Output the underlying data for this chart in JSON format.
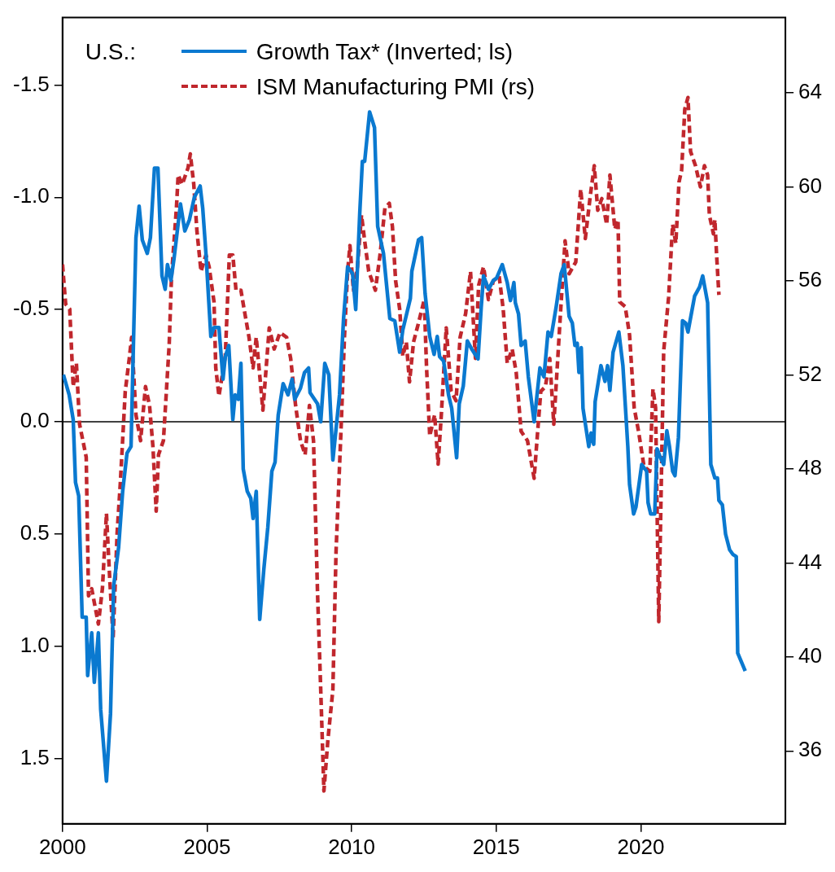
{
  "chart_data": {
    "type": "line",
    "legend_title": "U.S.:",
    "legend": "top left",
    "grid": false,
    "marker": "none",
    "xlim": [
      2000,
      2025
    ],
    "xticks": [
      2000,
      2005,
      2010,
      2015,
      2020
    ],
    "ylim": [
      1.79,
      -1.8
    ],
    "yticks": [
      {
        "value": -1.5,
        "label": "-1.5"
      },
      {
        "value": -1,
        "label": "-1.0"
      },
      {
        "value": -0.5,
        "label": "-0.5"
      },
      {
        "value": 0,
        "label": "0.0"
      },
      {
        "value": 0.5,
        "label": "0.5"
      },
      {
        "value": 1,
        "label": "1.0"
      },
      {
        "value": 1.5,
        "label": "1.5"
      }
    ],
    "y2lim": [
      32.9,
      67.2
    ],
    "y2ticks": [
      36,
      40,
      44,
      48,
      52,
      56,
      60,
      64
    ],
    "ref_lines": [
      {
        "axis": "y",
        "value": 0,
        "color": "#000000"
      }
    ],
    "series": [
      {
        "name": "Growth Tax* (Inverted; ls)",
        "color": "#0a79d0",
        "line_style": "solid",
        "axis": "y",
        "x": [
          2000.03,
          2000.23,
          2000.37,
          2000.45,
          2000.56,
          2000.68,
          2000.82,
          2000.87,
          2001.01,
          2001.1,
          2001.24,
          2001.32,
          2001.52,
          2001.66,
          2001.77,
          2001.94,
          2002.08,
          2002.23,
          2002.37,
          2002.45,
          2002.54,
          2002.65,
          2002.76,
          2002.93,
          2003.04,
          2003.18,
          2003.3,
          2003.44,
          2003.55,
          2003.63,
          2003.75,
          2003.86,
          2004.08,
          2004.23,
          2004.39,
          2004.56,
          2004.76,
          2004.85,
          2004.96,
          2005.13,
          2005.24,
          2005.41,
          2005.55,
          2005.63,
          2005.75,
          2005.89,
          2005.97,
          2006.08,
          2006.17,
          2006.25,
          2006.39,
          2006.51,
          2006.59,
          2006.7,
          2006.82,
          2006.96,
          2007.1,
          2007.24,
          2007.35,
          2007.46,
          2007.63,
          2007.8,
          2007.94,
          2008.03,
          2008.23,
          2008.37,
          2008.51,
          2008.56,
          2008.82,
          2008.93,
          2009.07,
          2009.21,
          2009.35,
          2009.58,
          2009.72,
          2009.86,
          2010.03,
          2010.14,
          2010.28,
          2010.37,
          2010.45,
          2010.62,
          2010.79,
          2010.9,
          2011.1,
          2011.32,
          2011.49,
          2011.66,
          2011.77,
          2012.03,
          2012.08,
          2012.31,
          2012.42,
          2012.54,
          2012.7,
          2012.85,
          2012.96,
          2013.04,
          2013.18,
          2013.35,
          2013.46,
          2013.63,
          2013.72,
          2013.86,
          2014,
          2014.17,
          2014.37,
          2014.48,
          2014.56,
          2014.73,
          2014.9,
          2015.01,
          2015.21,
          2015.38,
          2015.49,
          2015.61,
          2015.66,
          2015.77,
          2015.86,
          2016,
          2016.11,
          2016.31,
          2016.51,
          2016.65,
          2016.79,
          2016.9,
          2017.07,
          2017.24,
          2017.35,
          2017.52,
          2017.63,
          2017.72,
          2017.8,
          2017.86,
          2017.94,
          2018,
          2018.2,
          2018.28,
          2018.37,
          2018.42,
          2018.62,
          2018.76,
          2018.85,
          2018.93,
          2019.04,
          2019.24,
          2019.38,
          2019.55,
          2019.61,
          2019.75,
          2019.83,
          2020.03,
          2020.2,
          2020.25,
          2020.34,
          2020.48,
          2020.56,
          2020.68,
          2020.79,
          2020.9,
          2020.99,
          2021.1,
          2021.18,
          2021.3,
          2021.44,
          2021.55,
          2021.63,
          2021.86,
          2022.03,
          2022.14,
          2022.31,
          2022.42,
          2022.56,
          2022.65,
          2022.7,
          2022.82,
          2022.93,
          2023.07,
          2023.18,
          2023.3,
          2023.35,
          2023.61
        ],
        "values": [
          -0.21,
          -0.12,
          -0.01,
          0.27,
          0.33,
          0.87,
          0.87,
          1.13,
          0.94,
          1.16,
          0.94,
          1.28,
          1.6,
          1.3,
          0.73,
          0.56,
          0.31,
          0.14,
          0.11,
          -0.33,
          -0.82,
          -0.96,
          -0.81,
          -0.75,
          -0.82,
          -1.13,
          -1.13,
          -0.65,
          -0.59,
          -0.7,
          -0.63,
          -0.73,
          -0.97,
          -0.85,
          -0.9,
          -1,
          -1.05,
          -0.95,
          -0.75,
          -0.38,
          -0.42,
          -0.42,
          -0.19,
          -0.29,
          -0.34,
          -0.01,
          -0.12,
          -0.1,
          -0.26,
          0.21,
          0.31,
          0.34,
          0.43,
          0.31,
          0.88,
          0.66,
          0.47,
          0.22,
          0.18,
          -0.03,
          -0.17,
          -0.12,
          -0.19,
          -0.1,
          -0.15,
          -0.22,
          -0.24,
          -0.13,
          -0.08,
          0,
          -0.26,
          -0.21,
          0.17,
          -0.12,
          -0.46,
          -0.69,
          -0.66,
          -0.5,
          -0.93,
          -1.16,
          -1.16,
          -1.38,
          -1.31,
          -0.87,
          -0.75,
          -0.46,
          -0.45,
          -0.31,
          -0.41,
          -0.55,
          -0.67,
          -0.81,
          -0.82,
          -0.57,
          -0.38,
          -0.3,
          -0.38,
          -0.29,
          -0.27,
          -0.12,
          -0.06,
          0.16,
          -0.08,
          -0.16,
          -0.36,
          -0.32,
          -0.28,
          -0.51,
          -0.65,
          -0.59,
          -0.63,
          -0.64,
          -0.7,
          -0.62,
          -0.54,
          -0.62,
          -0.53,
          -0.48,
          -0.34,
          -0.36,
          -0.2,
          0,
          -0.24,
          -0.2,
          -0.4,
          -0.38,
          -0.51,
          -0.66,
          -0.7,
          -0.47,
          -0.44,
          -0.34,
          -0.35,
          -0.22,
          -0.33,
          -0.06,
          0.11,
          0.05,
          0.1,
          -0.09,
          -0.25,
          -0.18,
          -0.25,
          -0.14,
          -0.31,
          -0.4,
          -0.25,
          0.11,
          0.28,
          0.41,
          0.38,
          0.19,
          0.22,
          0.36,
          0.41,
          0.41,
          0.12,
          0.16,
          0.19,
          0.04,
          0.11,
          0.22,
          0.24,
          0.07,
          -0.45,
          -0.44,
          -0.4,
          -0.56,
          -0.6,
          -0.65,
          -0.53,
          0.19,
          0.25,
          0.25,
          0.35,
          0.37,
          0.5,
          0.57,
          0.59,
          0.6,
          1.03,
          1.11
        ]
      },
      {
        "name": "ISM Manufacturing PMI (rs)",
        "color": "#c0272d",
        "line_style": "dashed",
        "axis": "y2",
        "x": [
          2000,
          2000.11,
          2000.25,
          2000.37,
          2000.48,
          2000.59,
          2000.82,
          2000.9,
          2001.01,
          2001.24,
          2001.38,
          2001.52,
          2001.63,
          2001.75,
          2001.89,
          2002,
          2002.17,
          2002.31,
          2002.39,
          2002.54,
          2002.7,
          2002.87,
          2003.01,
          2003.13,
          2003.24,
          2003.32,
          2003.49,
          2003.69,
          2003.77,
          2003.94,
          2004,
          2004.14,
          2004.34,
          2004.42,
          2004.54,
          2004.65,
          2004.79,
          2004.96,
          2005.07,
          2005.24,
          2005.3,
          2005.41,
          2005.63,
          2005.77,
          2005.89,
          2006,
          2006.17,
          2006.28,
          2006.45,
          2006.59,
          2006.7,
          2006.93,
          2007.15,
          2007.32,
          2007.52,
          2007.75,
          2007.89,
          2008.06,
          2008.23,
          2008.39,
          2008.54,
          2008.68,
          2008.82,
          2008.93,
          2009.04,
          2009.18,
          2009.35,
          2009.46,
          2009.63,
          2009.75,
          2009.86,
          2009.94,
          2010.06,
          2010.2,
          2010.34,
          2010.45,
          2010.59,
          2010.82,
          2010.99,
          2011.15,
          2011.3,
          2011.41,
          2011.52,
          2011.66,
          2011.77,
          2011.89,
          2012,
          2012.14,
          2012.31,
          2012.51,
          2012.59,
          2012.7,
          2012.87,
          2012.99,
          2013.1,
          2013.27,
          2013.44,
          2013.61,
          2013.75,
          2013.94,
          2014.11,
          2014.28,
          2014.39,
          2014.56,
          2014.73,
          2014.9,
          2015.1,
          2015.24,
          2015.38,
          2015.55,
          2015.69,
          2015.86,
          2016.08,
          2016.31,
          2016.42,
          2016.54,
          2016.7,
          2016.85,
          2016.99,
          2017.24,
          2017.38,
          2017.52,
          2017.75,
          2017.92,
          2018.08,
          2018.25,
          2018.39,
          2018.51,
          2018.65,
          2018.82,
          2018.93,
          2019.1,
          2019.21,
          2019.27,
          2019.46,
          2019.61,
          2019.77,
          2019.92,
          2020.11,
          2020.31,
          2020.42,
          2020.51,
          2020.62,
          2020.79,
          2020.96,
          2021.1,
          2021.21,
          2021.32,
          2021.41,
          2021.52,
          2021.63,
          2021.72,
          2021.89,
          2022.06,
          2022.2,
          2022.31,
          2022.37,
          2022.51,
          2022.56,
          2022.62,
          2022.7
        ],
        "values": [
          56.7,
          55,
          54.8,
          51.5,
          52.5,
          49.9,
          48.5,
          42.6,
          42.9,
          41.4,
          42.9,
          46.1,
          43.4,
          40.8,
          45.3,
          47.4,
          51.3,
          52.7,
          53.6,
          50.3,
          49.2,
          51.5,
          50.7,
          48.9,
          46.2,
          48.6,
          49.2,
          53.3,
          56.2,
          59.1,
          60.5,
          60.1,
          60.8,
          61.4,
          60.1,
          58.1,
          56.4,
          57.1,
          56.6,
          55.1,
          52.3,
          51.1,
          52.8,
          57.1,
          57.1,
          55.6,
          55.6,
          54.8,
          53.6,
          52.3,
          53.6,
          50.5,
          54,
          53.1,
          53.8,
          53.6,
          52.7,
          50.7,
          49.2,
          48.6,
          50.7,
          49.2,
          42.7,
          38.6,
          34.3,
          36.5,
          38.6,
          44.5,
          49.6,
          53.6,
          56.4,
          57.5,
          55.6,
          56.6,
          58.8,
          57.7,
          56.4,
          55.6,
          57.2,
          59.1,
          59.3,
          58.3,
          56,
          54.8,
          52.8,
          53.4,
          51.7,
          53.4,
          54.2,
          55.2,
          52.3,
          49.4,
          50.3,
          48.2,
          50.3,
          54,
          51.3,
          50.9,
          53.6,
          54.6,
          56.4,
          52.7,
          55.8,
          56.6,
          55.2,
          56,
          56.2,
          54.8,
          52.5,
          53.1,
          52.1,
          49.6,
          49.2,
          47.6,
          49.4,
          51.3,
          51.5,
          52.7,
          49.9,
          55,
          57.7,
          56.3,
          56.8,
          59.9,
          57.8,
          59.6,
          60.9,
          59,
          59.5,
          58.4,
          60.5,
          58.2,
          58.6,
          55.1,
          54.9,
          53.7,
          50.6,
          49.6,
          48.1,
          47.9,
          51.4,
          50.6,
          41.5,
          53,
          55.3,
          58.4,
          57.6,
          60.2,
          60.7,
          63.3,
          63.8,
          61.5,
          60.9,
          60,
          60.9,
          60.5,
          58.8,
          58,
          58.6,
          57.1,
          55.4
        ]
      }
    ]
  }
}
